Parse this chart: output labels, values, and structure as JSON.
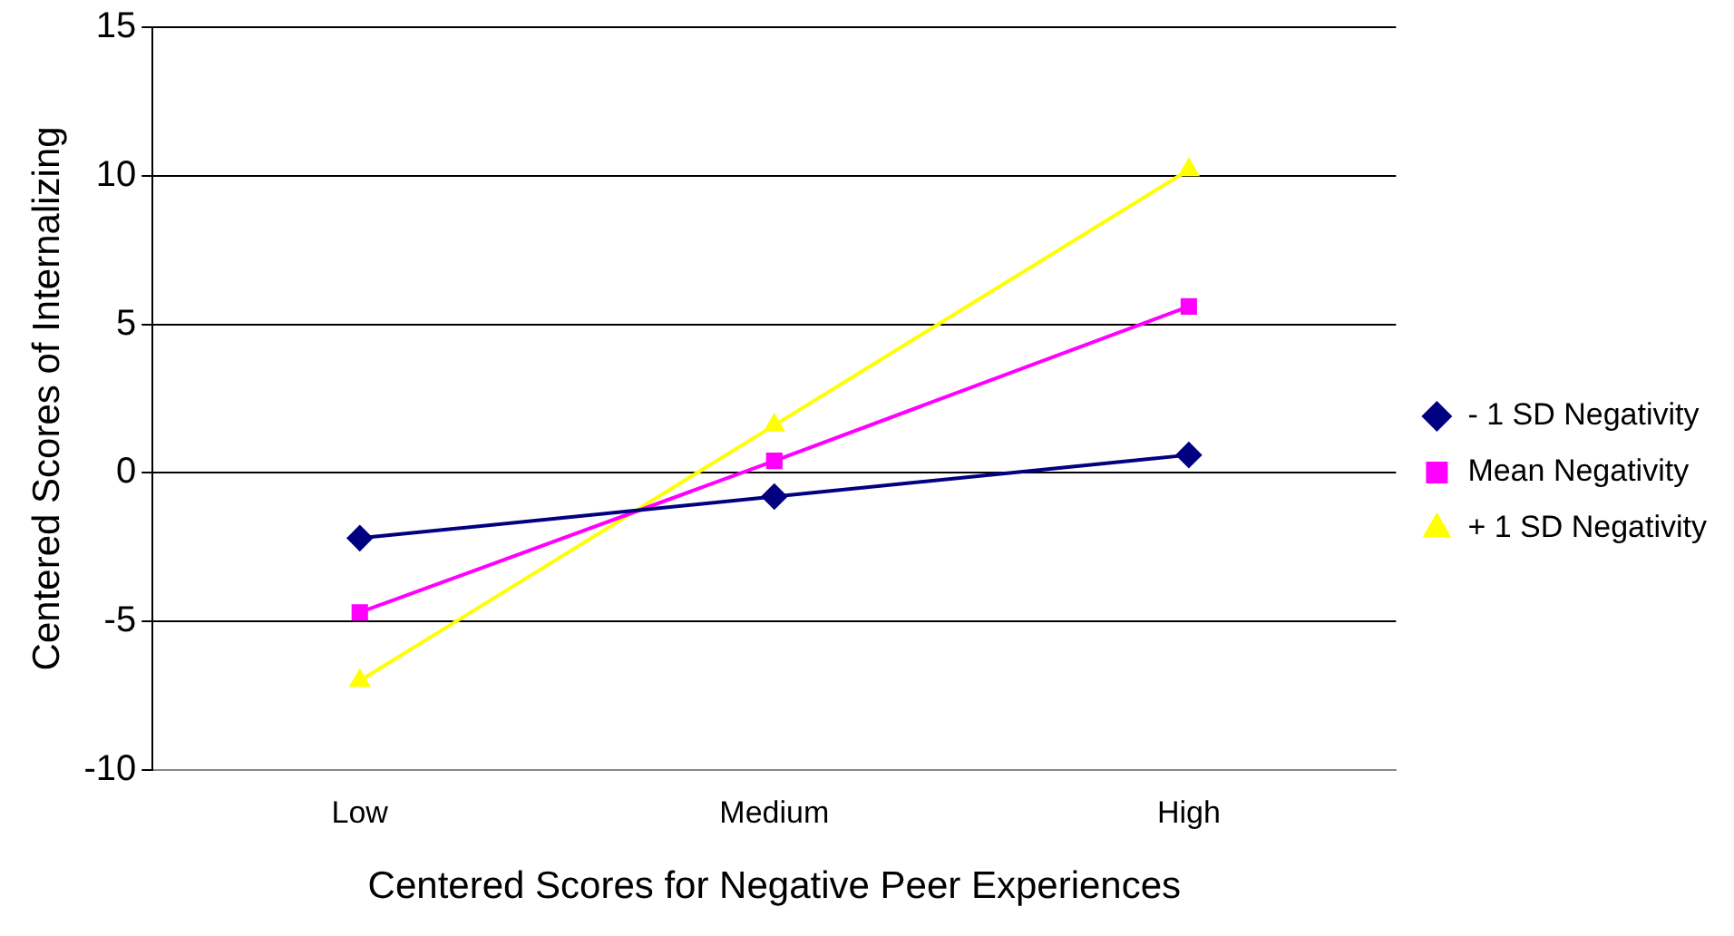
{
  "chart_data": {
    "type": "line",
    "xlabel": "Centered Scores for Negative Peer Experiences",
    "ylabel": "Centered Scores of Internalizing",
    "categories": [
      "Low",
      "Medium",
      "High"
    ],
    "series": [
      {
        "name": "- 1 SD Negativity",
        "color": "#000080",
        "marker": "diamond",
        "values": [
          -2.2,
          -0.8,
          0.6
        ]
      },
      {
        "name": "Mean Negativity",
        "color": "#ff00ff",
        "marker": "square",
        "values": [
          -4.7,
          0.4,
          5.6
        ]
      },
      {
        "name": "+ 1 SD Negativity",
        "color": "#ffff00",
        "marker": "triangle",
        "values": [
          -7.0,
          1.6,
          10.2
        ]
      }
    ],
    "ylim": [
      -10,
      15
    ],
    "yticks": [
      -10,
      -5,
      0,
      5,
      10,
      15
    ],
    "grid": "y",
    "legend": "right",
    "line_style": "solid"
  }
}
